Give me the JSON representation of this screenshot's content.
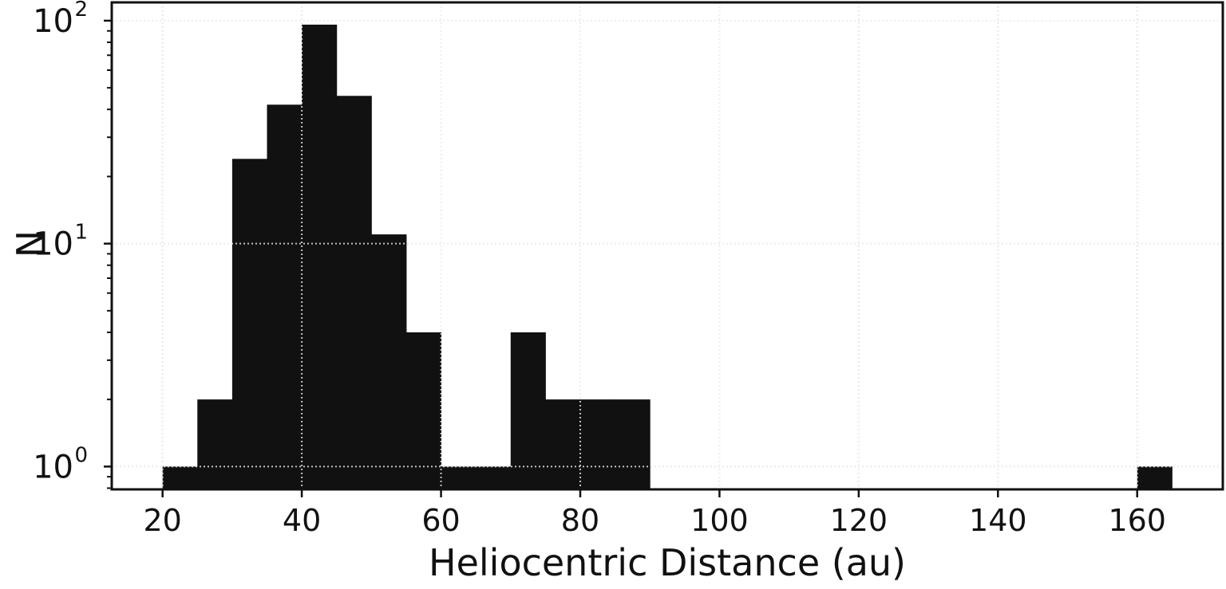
{
  "chart_data": {
    "type": "bar",
    "subtype": "histogram",
    "title": "",
    "xlabel": "Heliocentric Distance (au)",
    "ylabel": "N",
    "yscale": "log",
    "xlim": [
      12.7,
      172.3
    ],
    "ylim": [
      0.79,
      120.8
    ],
    "grid": true,
    "legend": null,
    "bar_color": "#111111",
    "grid_color": "#bbbbbb",
    "xticks": [
      20,
      40,
      60,
      80,
      100,
      120,
      140,
      160
    ],
    "xtick_labels": [
      "20",
      "40",
      "60",
      "80",
      "100",
      "120",
      "140",
      "160"
    ],
    "yticks": [
      1,
      10,
      100
    ],
    "ytick_labels": [
      {
        "base": "10",
        "exp": "0"
      },
      {
        "base": "10",
        "exp": "1"
      },
      {
        "base": "10",
        "exp": "2"
      }
    ],
    "bins": [
      {
        "x0": 20,
        "x1": 25,
        "count": 1
      },
      {
        "x0": 25,
        "x1": 30,
        "count": 2
      },
      {
        "x0": 30,
        "x1": 35,
        "count": 24
      },
      {
        "x0": 35,
        "x1": 40,
        "count": 42
      },
      {
        "x0": 40,
        "x1": 45,
        "count": 96
      },
      {
        "x0": 45,
        "x1": 50,
        "count": 46
      },
      {
        "x0": 50,
        "x1": 55,
        "count": 11
      },
      {
        "x0": 55,
        "x1": 60,
        "count": 4
      },
      {
        "x0": 60,
        "x1": 65,
        "count": 1
      },
      {
        "x0": 65,
        "x1": 70,
        "count": 1
      },
      {
        "x0": 70,
        "x1": 75,
        "count": 4
      },
      {
        "x0": 75,
        "x1": 80,
        "count": 2
      },
      {
        "x0": 80,
        "x1": 85,
        "count": 2
      },
      {
        "x0": 85,
        "x1": 90,
        "count": 2
      },
      {
        "x0": 160,
        "x1": 165,
        "count": 1
      }
    ]
  }
}
